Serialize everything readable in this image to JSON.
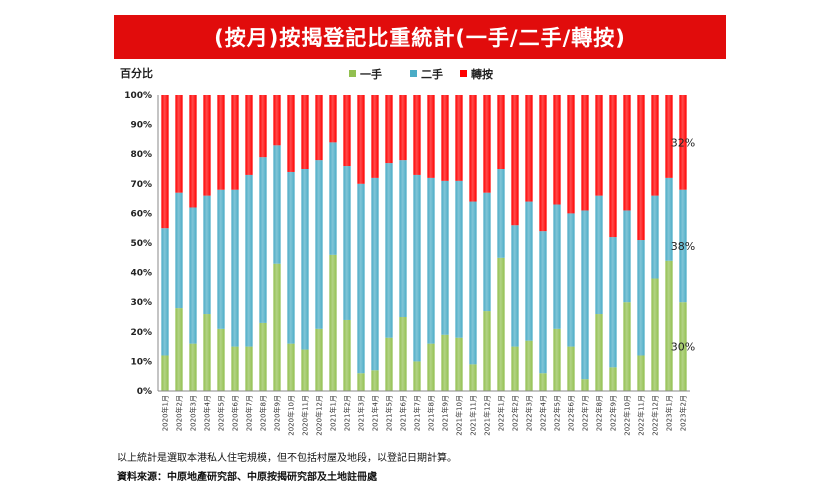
{
  "chart_data": {
    "type": "bar",
    "stacked": true,
    "percent": true,
    "title": "(按月)按揭登記比重統計(一手/二手/轉按)",
    "ylabel": "百分比",
    "ylim": [
      0,
      100
    ],
    "yticks": [
      "0%",
      "10%",
      "20%",
      "30%",
      "40%",
      "50%",
      "60%",
      "70%",
      "80%",
      "90%",
      "100%"
    ],
    "legend_position": "top",
    "categories": [
      "2020年1月",
      "2020年2月",
      "2020年3月",
      "2020年4月",
      "2020年5月",
      "2020年6月",
      "2020年7月",
      "2020年8月",
      "2020年9月",
      "2020年10月",
      "2020年11月",
      "2020年12月",
      "2021年1月",
      "2021年2月",
      "2021年3月",
      "2021年4月",
      "2021年5月",
      "2021年6月",
      "2021年7月",
      "2021年8月",
      "2021年9月",
      "2021年10月",
      "2021年11月",
      "2021年12月",
      "2022年1月",
      "2022年2月",
      "2022年3月",
      "2022年4月",
      "2022年5月",
      "2022年6月",
      "2022年7月",
      "2022年8月",
      "2022年9月",
      "2022年10月",
      "2022年11月",
      "2022年12月",
      "2023年1月",
      "2023年2月"
    ],
    "series": [
      {
        "name": "一手",
        "color": "#92c050",
        "values": [
          12,
          28,
          16,
          26,
          21,
          15,
          15,
          23,
          43,
          16,
          14,
          21,
          46,
          24,
          6,
          7,
          18,
          25,
          10,
          16,
          19,
          18,
          9,
          27,
          45,
          15,
          17,
          6,
          21,
          15,
          4,
          26,
          8,
          30,
          12,
          38,
          44,
          30
        ]
      },
      {
        "name": "二手",
        "color": "#4bacc6",
        "values": [
          43,
          39,
          46,
          40,
          47,
          53,
          58,
          56,
          40,
          58,
          61,
          57,
          38,
          52,
          64,
          65,
          59,
          53,
          63,
          56,
          52,
          53,
          55,
          40,
          30,
          41,
          47,
          48,
          42,
          45,
          57,
          40,
          44,
          31,
          39,
          28,
          28,
          38
        ]
      },
      {
        "name": "轉按",
        "color": "#ff0000",
        "values": [
          45,
          33,
          38,
          34,
          32,
          32,
          27,
          21,
          17,
          26,
          25,
          22,
          16,
          24,
          30,
          28,
          23,
          22,
          27,
          28,
          29,
          29,
          36,
          33,
          25,
          44,
          36,
          46,
          37,
          40,
          39,
          34,
          48,
          39,
          49,
          34,
          28,
          32
        ]
      }
    ],
    "annotations": [
      {
        "text": "32%",
        "series": "轉按",
        "category": "2023年2月"
      },
      {
        "text": "38%",
        "series": "二手",
        "category": "2023年2月"
      },
      {
        "text": "30%",
        "series": "一手",
        "category": "2023年2月"
      }
    ]
  },
  "footnote": "以上統計是選取本港私人住宅規模，但不包括村屋及地段，以登記日期計算。",
  "source": "資料來源：中原地產研究部、中原按揭研究部及土地註冊處"
}
